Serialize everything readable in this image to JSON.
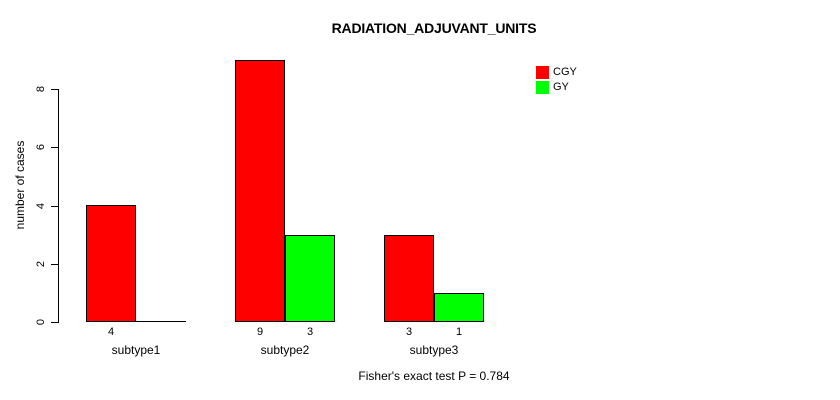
{
  "chart_data": {
    "type": "bar",
    "title": "RADIATION_ADJUVANT_UNITS",
    "subtitle": "Fisher's exact test P = 0.784",
    "ylabel": "number of cases",
    "xlabel": "",
    "categories": [
      "subtype1",
      "subtype2",
      "subtype3"
    ],
    "series": [
      {
        "name": "CGY",
        "color": "#ff0000",
        "values": [
          4,
          9,
          3
        ]
      },
      {
        "name": "GY",
        "color": "#00ff00",
        "values": [
          0,
          3,
          1
        ]
      }
    ],
    "bar_value_labels": {
      "CGY": [
        "4",
        "9",
        "3"
      ],
      "GY": [
        "",
        "3",
        "1"
      ]
    },
    "yticks": [
      0,
      2,
      4,
      6,
      8
    ],
    "ylim": [
      0,
      9
    ],
    "grid": false,
    "legend_position": "top-right",
    "bar_fill_colors": {
      "CGY": "#ff0000",
      "GY": "#00ff00"
    }
  }
}
